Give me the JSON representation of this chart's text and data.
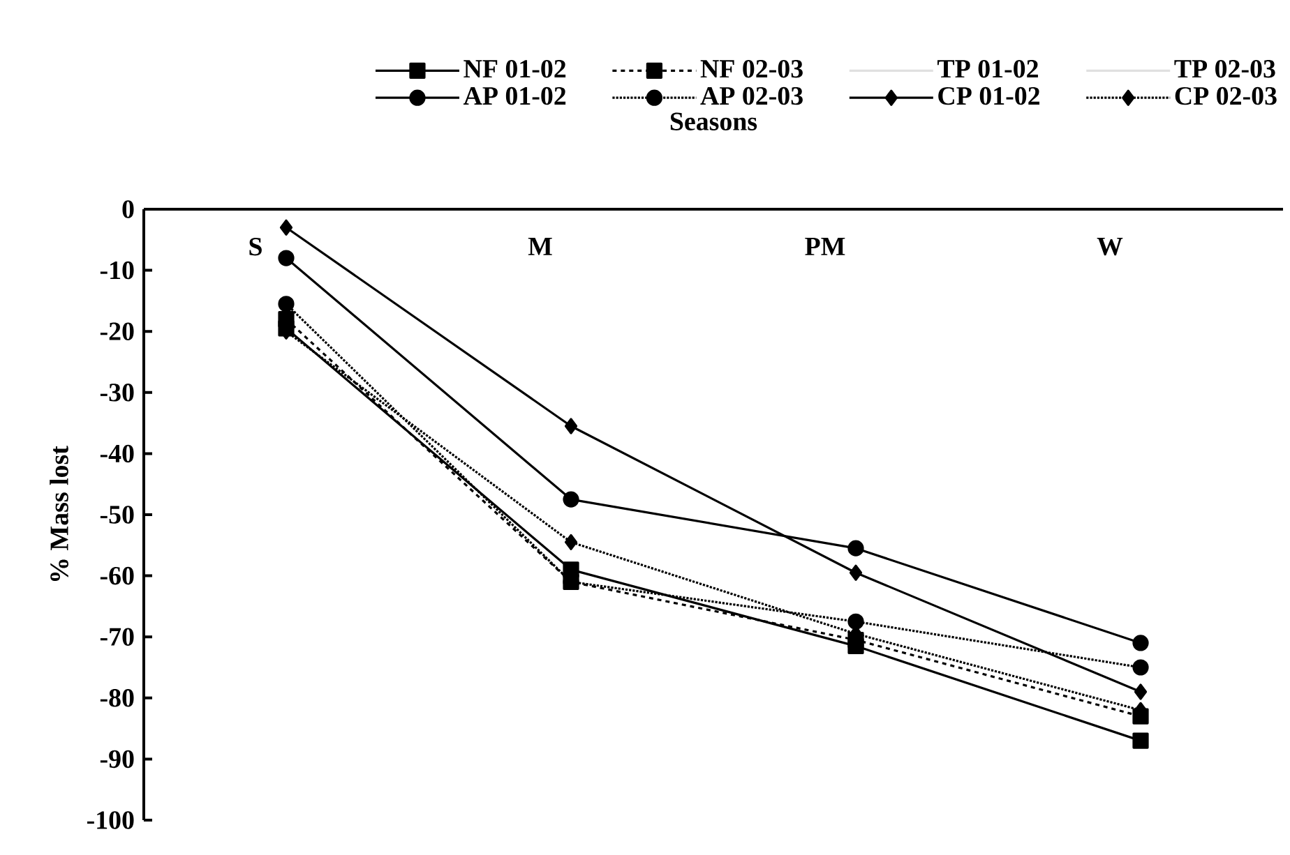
{
  "chart_data": {
    "type": "line",
    "xlabel": "Seasons",
    "ylabel": "% Mass lost",
    "categories": [
      "S",
      "M",
      "PM",
      "W"
    ],
    "ylim": [
      -100,
      0
    ],
    "yticks": [
      -100,
      -90,
      -80,
      -70,
      -60,
      -50,
      -40,
      -30,
      -20,
      -10,
      0
    ],
    "legend": "top",
    "series": [
      {
        "name": "NF 01-02",
        "color": "#000000",
        "marker": "square",
        "line_style": "solid",
        "values": [
          -19.5,
          -59,
          -71.5,
          -87
        ]
      },
      {
        "name": "NF 02-03",
        "color": "#000000",
        "marker": "square",
        "line_style": "dashed",
        "values": [
          -18,
          -61,
          -70.5,
          -83
        ]
      },
      {
        "name": "TP 01-02",
        "color": "#e0e0e0",
        "marker": "none",
        "line_style": "solid",
        "values": [
          null,
          null,
          null,
          null
        ]
      },
      {
        "name": "TP 02-03",
        "color": "#e0e0e0",
        "marker": "none",
        "line_style": "solid",
        "values": [
          null,
          null,
          null,
          null
        ]
      },
      {
        "name": "AP 01-02",
        "color": "#000000",
        "marker": "circle",
        "line_style": "solid",
        "values": [
          -8,
          -47.5,
          -55.5,
          -71
        ]
      },
      {
        "name": "AP 02-03",
        "color": "#000000",
        "marker": "circle",
        "line_style": "dotted",
        "values": [
          -15.5,
          -61,
          -67.5,
          -75
        ]
      },
      {
        "name": "CP 01-02",
        "color": "#000000",
        "marker": "diamond",
        "line_style": "solid",
        "values": [
          -3,
          -35.5,
          -59.5,
          -79
        ]
      },
      {
        "name": "CP 02-03",
        "color": "#000000",
        "marker": "diamond",
        "line_style": "dotted",
        "values": [
          -20,
          -54.5,
          -69.5,
          -82
        ]
      }
    ]
  }
}
